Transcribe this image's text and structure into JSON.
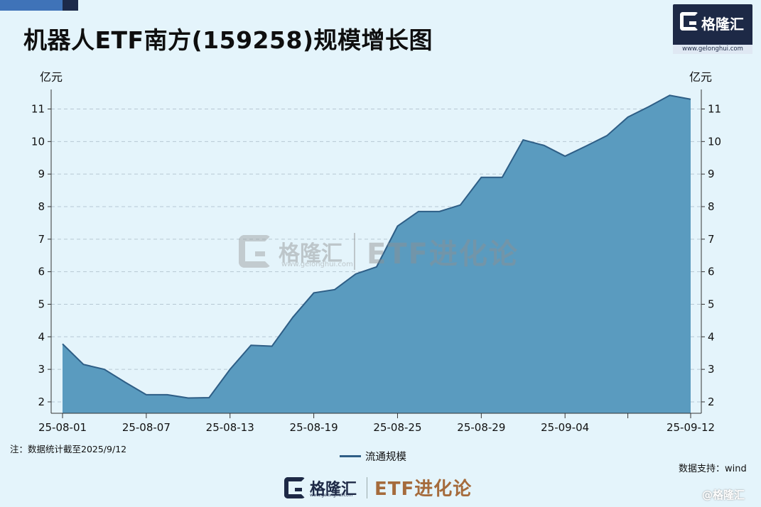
{
  "colors": {
    "background": "#e4f4fb",
    "area_fill": "#5a9bbf",
    "line": "#2e5e86",
    "brand_dark": "#1d2946",
    "slogan": "#a56b3c"
  },
  "header": {
    "title": "机器人ETF南方(159258)规模增长图"
  },
  "brand": {
    "name": "格隆汇",
    "url": "www.gelonghui.com",
    "icon": "gelonghui-logo-icon"
  },
  "units": {
    "left": "亿元",
    "right": "亿元"
  },
  "watermark": {
    "name": "格隆汇",
    "url": "www.gelonghui.com",
    "slogan": "ETF进化论"
  },
  "note": "注：数据统计截至2025/9/12",
  "legend_label": "流通规模",
  "source": "数据支持：wind",
  "footer": {
    "name": "格隆汇",
    "url": "www.gelonghui.com",
    "slogan": "ETF进化论"
  },
  "corner_mark": "@格隆汇",
  "chart_data": {
    "type": "area",
    "y_ticks": [
      2,
      3,
      4,
      5,
      6,
      7,
      8,
      9,
      10,
      11
    ],
    "ylim": [
      1.65,
      11.6
    ],
    "x_tick_labels": [
      "25-08-01",
      "25-08-07",
      "25-08-13",
      "25-08-19",
      "25-08-25",
      "25-08-29",
      "25-09-04",
      "25-09-12"
    ],
    "x_tick_indices": [
      0,
      4,
      8,
      12,
      16,
      20,
      24,
      30
    ],
    "grid": true,
    "series": [
      {
        "name": "流通规模",
        "values": [
          3.78,
          3.15,
          3.0,
          2.6,
          2.22,
          2.22,
          2.12,
          2.13,
          3.0,
          3.74,
          3.71,
          4.6,
          5.35,
          5.45,
          5.93,
          6.15,
          7.4,
          7.85,
          7.85,
          8.05,
          8.9,
          8.9,
          10.05,
          9.88,
          9.55,
          9.86,
          10.18,
          10.75,
          11.07,
          11.42,
          11.3
        ]
      }
    ]
  }
}
